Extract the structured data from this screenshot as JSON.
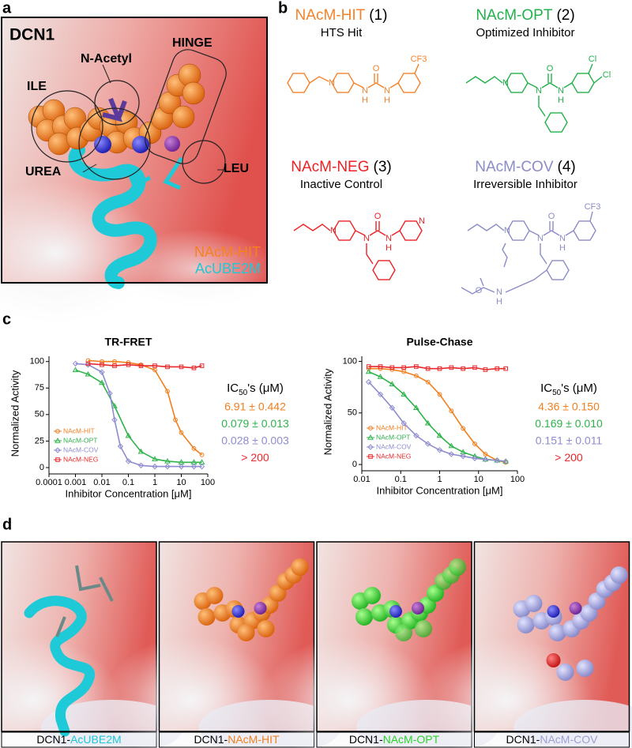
{
  "panel_labels": [
    "a",
    "b",
    "c",
    "d"
  ],
  "panel_a": {
    "title": "DCN1",
    "labels": [
      "N-Acetyl",
      "HINGE",
      "ILE",
      "UREA",
      "LEU"
    ],
    "legend": [
      {
        "text": "NAcM-HIT",
        "color": "#f5821f"
      },
      {
        "text": "AcUBE2M",
        "color": "#1ec8d8"
      }
    ]
  },
  "panel_b": {
    "compounds": [
      {
        "name": "NAcM-HIT",
        "number": "(1)",
        "subtitle": "HTS Hit",
        "color": "#f5822a",
        "atoms": [
          "N",
          "N",
          "H",
          "O",
          "N",
          "H",
          "CF3"
        ]
      },
      {
        "name": "NAcM-OPT",
        "number": "(2)",
        "subtitle": "Optimized Inhibitor",
        "color": "#21b14b",
        "atoms": [
          "N",
          "N",
          "O",
          "N",
          "H",
          "Cl",
          "Cl"
        ]
      },
      {
        "name": "NAcM-NEG",
        "number": "(3)",
        "subtitle": "Inactive Control",
        "color": "#ee2124",
        "atoms": [
          "N",
          "N",
          "O",
          "N",
          "H",
          "N"
        ]
      },
      {
        "name": "NAcM-COV",
        "number": "(4)",
        "subtitle": "Irreversible Inhibitor",
        "color": "#8b8cc7",
        "atoms": [
          "N",
          "N",
          "O",
          "N",
          "H",
          "CF3",
          "O",
          "N",
          "H"
        ]
      }
    ]
  },
  "chart_data": [
    {
      "type": "line",
      "title": "TR-FRET",
      "ylabel": "Normalized Activity",
      "xlabel": "Inhibitor Concentration [μM]",
      "xlog": true,
      "xlim": [
        0.0001,
        100
      ],
      "xticks": [
        0.0001,
        0.001,
        0.01,
        0.1,
        1,
        10,
        100
      ],
      "ylim": [
        -3,
        105
      ],
      "yticks": [
        0,
        25,
        50,
        75,
        100
      ],
      "legend": "lower left",
      "series": [
        {
          "name": "NAcM-HIT",
          "color": "#f07f1e",
          "marker": "circle",
          "x": [
            0.003,
            0.01,
            0.03,
            0.1,
            0.3,
            1,
            3,
            6,
            10,
            30,
            60
          ],
          "values": [
            101,
            100,
            100,
            99,
            97,
            92,
            72,
            45,
            33,
            18,
            12
          ]
        },
        {
          "name": "NAcM-OPT",
          "color": "#2db34a",
          "marker": "triangle",
          "x": [
            0.001,
            0.003,
            0.01,
            0.03,
            0.1,
            0.3,
            1,
            3,
            10,
            30,
            60
          ],
          "values": [
            92,
            88,
            80,
            58,
            30,
            15,
            8,
            6,
            5,
            5,
            5
          ]
        },
        {
          "name": "NAcM-COV",
          "color": "#8e8ccf",
          "marker": "diamond",
          "x": [
            0.001,
            0.003,
            0.01,
            0.02,
            0.03,
            0.05,
            0.1,
            0.3,
            1,
            3,
            10,
            30,
            60
          ],
          "values": [
            98,
            97,
            90,
            70,
            45,
            20,
            6,
            2,
            1,
            1,
            1,
            1,
            1
          ]
        },
        {
          "name": "NAcM-NEG",
          "color": "#e8282a",
          "marker": "square",
          "x": [
            0.003,
            0.01,
            0.03,
            0.1,
            0.3,
            1,
            3,
            10,
            30,
            60
          ],
          "values": [
            98,
            97,
            96,
            97,
            96,
            96,
            95,
            95,
            94,
            96
          ]
        }
      ]
    },
    {
      "type": "line",
      "title": "Pulse-Chase",
      "ylabel": "Normalized Activity",
      "xlabel": "Inhibitor Concentration [μM]",
      "xlog": true,
      "xlim": [
        0.01,
        100
      ],
      "xticks": [
        0.01,
        0.1,
        1,
        10,
        100
      ],
      "ylim": [
        -3,
        105
      ],
      "yticks": [
        0,
        50,
        100
      ],
      "legend": "lower left",
      "series": [
        {
          "name": "NAcM-HIT",
          "color": "#f07f1e",
          "marker": "circle",
          "x": [
            0.015,
            0.03,
            0.06,
            0.12,
            0.25,
            0.5,
            1,
            2,
            4,
            8,
            15,
            30,
            50
          ],
          "values": [
            93,
            93,
            92,
            90,
            86,
            80,
            68,
            52,
            35,
            20,
            10,
            4,
            2
          ]
        },
        {
          "name": "NAcM-OPT",
          "color": "#2db34a",
          "marker": "triangle",
          "x": [
            0.015,
            0.03,
            0.06,
            0.12,
            0.25,
            0.5,
            1,
            2,
            4,
            8,
            15,
            30,
            50
          ],
          "values": [
            90,
            85,
            78,
            68,
            55,
            40,
            28,
            18,
            12,
            8,
            5,
            4,
            3
          ]
        },
        {
          "name": "NAcM-COV",
          "color": "#8e8ccf",
          "marker": "diamond",
          "x": [
            0.015,
            0.03,
            0.06,
            0.12,
            0.25,
            0.5,
            1,
            2,
            4,
            8,
            15,
            30,
            50
          ],
          "values": [
            80,
            68,
            55,
            40,
            28,
            20,
            14,
            10,
            8,
            6,
            5,
            4,
            3
          ]
        },
        {
          "name": "NAcM-NEG",
          "color": "#e8282a",
          "marker": "square",
          "x": [
            0.015,
            0.03,
            0.06,
            0.12,
            0.25,
            0.5,
            1,
            2,
            4,
            8,
            15,
            30,
            50
          ],
          "values": [
            95,
            95,
            94,
            94,
            95,
            93,
            93,
            94,
            93,
            94,
            92,
            93,
            93
          ]
        }
      ]
    }
  ],
  "ic50": [
    {
      "header": {
        "main": "IC",
        "sub": "50",
        "rest": "'s (μM)"
      },
      "values": [
        "6.91 ± 0.442",
        "0.079 ± 0.013",
        "0.028 ± 0.003",
        "> 200"
      ]
    },
    {
      "header": {
        "main": "IC",
        "sub": "50",
        "rest": "'s (μM)"
      },
      "values": [
        "4.36 ± 0.150",
        "0.169 ± 0.010",
        "0.151 ± 0.011",
        "> 200"
      ]
    }
  ],
  "panel_d": {
    "captions": [
      {
        "prefix": "DCN1-",
        "name": "AcUBE2M",
        "color": "#1bc7d6"
      },
      {
        "prefix": "DCN1-",
        "name": "NAcM-HIT",
        "color": "#f08020"
      },
      {
        "prefix": "DCN1-",
        "name": "NAcM-OPT",
        "color": "#2bd42b"
      },
      {
        "prefix": "DCN1-",
        "name": "NAcM-COV",
        "color": "#9c9ed8"
      }
    ]
  }
}
